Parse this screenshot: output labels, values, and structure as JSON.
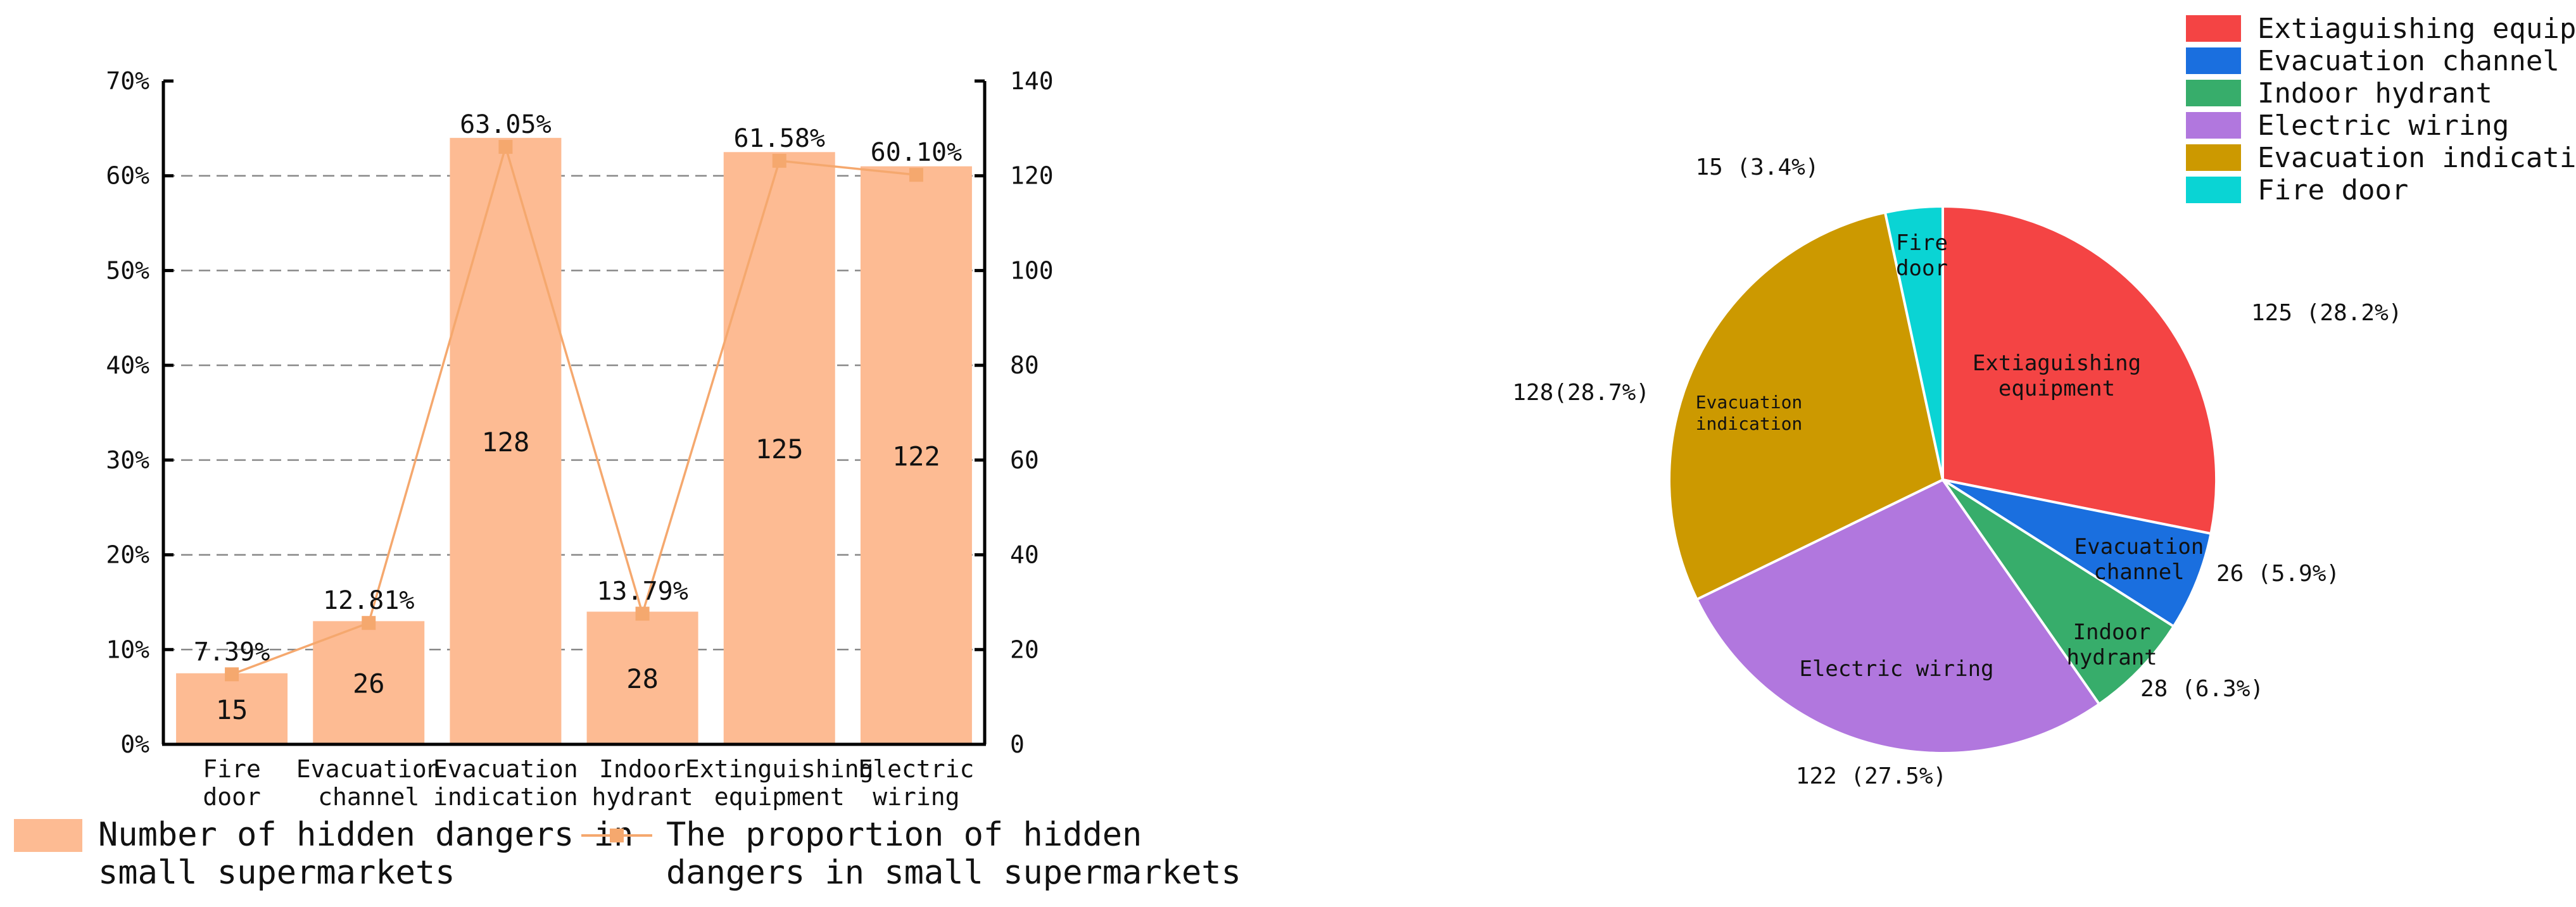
{
  "chart_data": [
    {
      "type": "bar",
      "categories": [
        [
          "Fire",
          "door"
        ],
        [
          "Evacuation",
          "channel"
        ],
        [
          "Evacuation",
          "indication"
        ],
        [
          "Indoor",
          "hydrant"
        ],
        [
          "Extinguishing",
          "equipment"
        ],
        [
          "Electric",
          "wiring"
        ]
      ],
      "series": [
        {
          "name": "Number of hidden dangers in small supermarkets",
          "legend_lines": [
            "Number of hidden dangers in",
            "small supermarkets"
          ],
          "type": "bar",
          "axis": "right",
          "color": "#FDBB93",
          "values": [
            15,
            26,
            128,
            28,
            125,
            122
          ],
          "labels": [
            "15",
            "26",
            "128",
            "28",
            "125",
            "122"
          ]
        },
        {
          "name": "The proportion of hidden dangers in small supermarkets",
          "legend_lines": [
            "The proportion of hidden",
            "dangers in small supermarkets"
          ],
          "type": "line",
          "axis": "left",
          "color": "#F5A86E",
          "values": [
            7.39,
            12.81,
            63.05,
            13.79,
            61.58,
            60.1
          ],
          "labels": [
            "7.39%",
            "12.81%",
            "63.05%",
            "13.79%",
            "61.58%",
            "60.10%"
          ]
        }
      ],
      "y_left": {
        "ylim": [
          0,
          70
        ],
        "ticks": [
          "0%",
          "10%",
          "20%",
          "30%",
          "40%",
          "50%",
          "60%",
          "70%"
        ]
      },
      "y_right": {
        "ylim": [
          0,
          140
        ],
        "ticks": [
          "0",
          "20",
          "40",
          "60",
          "80",
          "100",
          "120",
          "140"
        ]
      },
      "grid": "dashed horizontal",
      "legend_position": "bottom"
    },
    {
      "type": "pie",
      "slices": [
        {
          "name": "Extiaguishing equipment",
          "legend": "Extiaguishing equipmer",
          "value": 125,
          "percent": 28.2,
          "color": "#F44444",
          "inner_label": [
            "Extiaguishing",
            "equipment"
          ],
          "outer_label": "125 (28.2%)"
        },
        {
          "name": "Evacuation channel",
          "legend": "Evacuation channel",
          "value": 26,
          "percent": 5.9,
          "color": "#1A6FDF",
          "inner_label": [
            "Evacuation",
            "channel"
          ],
          "outer_label": "26 (5.9%)"
        },
        {
          "name": "Indoor hydrant",
          "legend": "Indoor hydrant",
          "value": 28,
          "percent": 6.3,
          "color": "#37AD6B",
          "inner_label": [
            "Indoor",
            "hydrant"
          ],
          "outer_label": "28 (6.3%)"
        },
        {
          "name": "Electric wiring",
          "legend": "Electric wiring",
          "value": 122,
          "percent": 27.5,
          "color": "#B177DE",
          "inner_label": [
            "Electric wiring"
          ],
          "outer_label": "122 (27.5%)"
        },
        {
          "name": "Evacuation indication",
          "legend": "Evacuation indication",
          "value": 128,
          "percent": 28.7,
          "color": "#CC9900",
          "inner_label": [
            "Evacuation",
            "indication"
          ],
          "outer_label": "128(28.7%)"
        },
        {
          "name": "Fire door",
          "legend": "Fire door",
          "value": 15,
          "percent": 3.4,
          "color": "#0AD4D4",
          "inner_label": [
            "Fire",
            "door"
          ],
          "outer_label": "15 (3.4%)"
        }
      ],
      "start": "12 o'clock",
      "direction": "clockwise",
      "legend_position": "top-right"
    }
  ]
}
